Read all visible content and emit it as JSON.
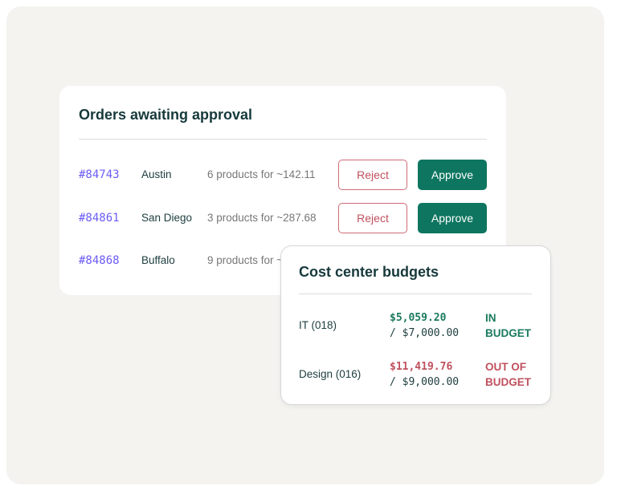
{
  "orders": {
    "title": "Orders awaiting approval",
    "reject_label": "Reject",
    "approve_label": "Approve",
    "rows": [
      {
        "id": "#84743",
        "city": "Austin",
        "desc": "6 products for ~142.11"
      },
      {
        "id": "#84861",
        "city": "San Diego",
        "desc": "3 products for ~287.68"
      },
      {
        "id": "#84868",
        "city": "Buffalo",
        "desc": "9 products for ~"
      }
    ]
  },
  "budgets": {
    "title": "Cost center budgets",
    "rows": [
      {
        "name": "IT (018)",
        "spent": "$5,059.20",
        "limit": "/ $7,000.00",
        "status": "IN BUDGET",
        "color": "#1a7a5e"
      },
      {
        "name": "Design (016)",
        "spent": "$11,419.76",
        "limit": "/ $9,000.00",
        "status": "OUT OF BUDGET",
        "color": "#c0505e"
      }
    ]
  },
  "colors": {
    "approve": "#0e7660",
    "reject": "#c0505e",
    "order_id": "#6b5cf6"
  }
}
